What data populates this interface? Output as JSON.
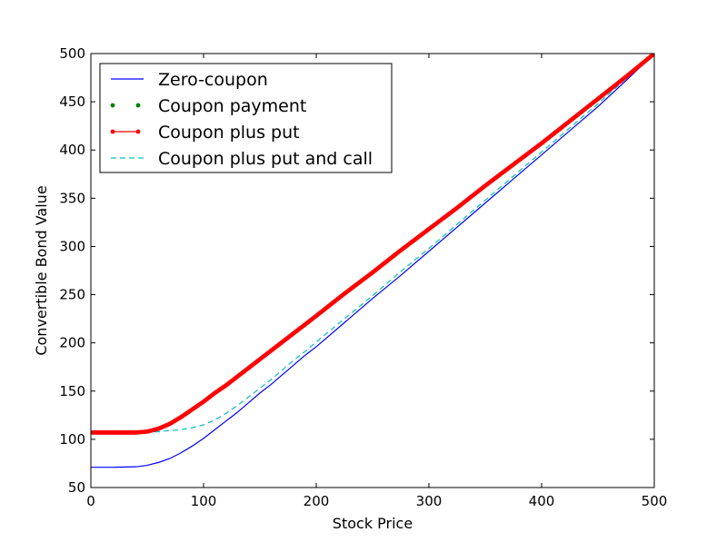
{
  "chart_data": {
    "type": "line",
    "title": "",
    "xlabel": "Stock Price",
    "ylabel": "Convertible Bond Value",
    "xlim": [
      0,
      500
    ],
    "ylim": [
      50,
      500
    ],
    "x_ticks": [
      "0",
      "100",
      "200",
      "300",
      "400",
      "500"
    ],
    "y_ticks": [
      "50",
      "100",
      "150",
      "200",
      "250",
      "300",
      "350",
      "400",
      "450",
      "500"
    ],
    "grid": false,
    "legend_position": "top-left",
    "x": [
      0,
      20,
      40,
      50,
      60,
      70,
      80,
      90,
      100,
      110,
      120,
      130,
      140,
      150,
      160,
      170,
      180,
      190,
      200,
      225,
      250,
      275,
      300,
      325,
      350,
      375,
      400,
      425,
      450,
      475,
      500
    ],
    "series": [
      {
        "name": "Zero-coupon",
        "color": "#0000ff",
        "style": "solid",
        "values": [
          71,
          71,
          71.5,
          73,
          76,
          80,
          86,
          93,
          101,
          110,
          119,
          128,
          138,
          148,
          157,
          167,
          177,
          187,
          196,
          221,
          246,
          270,
          295,
          320,
          345,
          370,
          395,
          420,
          445,
          472,
          500
        ]
      },
      {
        "name": "Coupon payment",
        "color": "#008000",
        "style": "dotted",
        "values": [
          107,
          107,
          107,
          108,
          111,
          116,
          123,
          131,
          139,
          148,
          156,
          165,
          174,
          183,
          192,
          201,
          210,
          219,
          228,
          251,
          273,
          296,
          318,
          340,
          363,
          385,
          407,
          430,
          453,
          476,
          500
        ]
      },
      {
        "name": "Coupon plus put",
        "color": "#ff0000",
        "style": "solid-markers",
        "values": [
          107,
          107,
          107,
          108,
          111,
          116,
          123,
          131,
          139,
          148,
          156,
          165,
          174,
          183,
          192,
          201,
          210,
          219,
          228,
          251,
          273,
          296,
          318,
          340,
          363,
          385,
          407,
          430,
          453,
          476,
          500
        ]
      },
      {
        "name": "Coupon plus put and call",
        "color": "#00bfbf",
        "style": "dashed",
        "values": [
          106,
          106,
          106.5,
          107,
          108,
          109,
          110,
          112,
          115,
          120,
          127,
          135,
          144,
          153,
          162,
          172,
          182,
          191,
          201,
          225,
          249,
          274,
          298,
          323,
          348,
          373,
          398,
          423,
          448,
          474,
          500
        ]
      }
    ]
  }
}
